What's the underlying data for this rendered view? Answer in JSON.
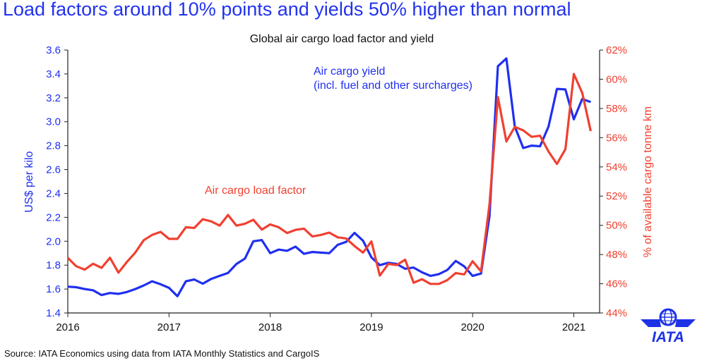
{
  "headline": "Load factors around 10% points and yields 50% higher than normal",
  "source": "Source: IATA Economics using data from IATA Monthly Statistics and CargoIS",
  "logo": {
    "text": "IATA",
    "color": "#1e32e6"
  },
  "chart_data": {
    "type": "line",
    "title": "Global air cargo load factor and yield",
    "ylabel": "US$ per kilo",
    "y2label": "% of available cargo tonne km",
    "ylim": [
      1.4,
      3.6
    ],
    "y2lim": [
      44,
      62
    ],
    "yticks": [
      "1.4",
      "1.6",
      "1.8",
      "2.0",
      "2.2",
      "2.4",
      "2.6",
      "2.8",
      "3.0",
      "3.2",
      "3.4",
      "3.6"
    ],
    "y2ticks": [
      "44%",
      "46%",
      "48%",
      "50%",
      "52%",
      "54%",
      "56%",
      "58%",
      "60%",
      "62%"
    ],
    "xticks": [
      "2016",
      "2017",
      "2018",
      "2019",
      "2020",
      "2021"
    ],
    "x_start": "2016-01",
    "x_frequency": "monthly",
    "grid": false,
    "series": [
      {
        "name": "Air cargo yield",
        "name_line2": "(incl. fuel and other surcharges)",
        "axis": "left",
        "color": "#1f2ff0",
        "values": [
          1.62,
          1.615,
          1.6,
          1.59,
          1.55,
          1.567,
          1.56,
          1.575,
          1.6,
          1.63,
          1.665,
          1.64,
          1.61,
          1.54,
          1.665,
          1.68,
          1.645,
          1.685,
          1.71,
          1.735,
          1.81,
          1.855,
          2.0,
          2.01,
          1.9,
          1.93,
          1.92,
          1.955,
          1.895,
          1.91,
          1.905,
          1.9,
          1.97,
          1.995,
          2.07,
          2.005,
          1.865,
          1.8,
          1.82,
          1.81,
          1.77,
          1.78,
          1.74,
          1.71,
          1.725,
          1.76,
          1.835,
          1.79,
          1.71,
          1.73,
          2.21,
          3.465,
          3.53,
          2.96,
          2.78,
          2.8,
          2.795,
          2.96,
          3.275,
          3.27,
          3.02,
          3.19,
          3.165
        ]
      },
      {
        "name": "Air cargo load factor",
        "axis": "right",
        "color": "#f04030",
        "values": [
          47.78,
          47.2,
          46.97,
          47.37,
          47.09,
          47.78,
          46.76,
          47.49,
          48.13,
          48.98,
          49.34,
          49.55,
          49.07,
          49.07,
          49.87,
          49.82,
          50.42,
          50.27,
          49.98,
          50.71,
          49.98,
          50.11,
          50.38,
          49.71,
          50.06,
          49.87,
          49.47,
          49.69,
          49.77,
          49.24,
          49.34,
          49.5,
          49.18,
          49.1,
          48.58,
          48.13,
          48.9,
          46.56,
          47.36,
          47.28,
          47.65,
          46.07,
          46.31,
          45.99,
          45.99,
          46.25,
          46.73,
          46.64,
          47.54,
          46.85,
          51.43,
          58.78,
          55.74,
          56.74,
          56.5,
          56.06,
          56.13,
          55.05,
          54.2,
          55.21,
          60.36,
          59.07,
          56.45
        ]
      }
    ]
  }
}
